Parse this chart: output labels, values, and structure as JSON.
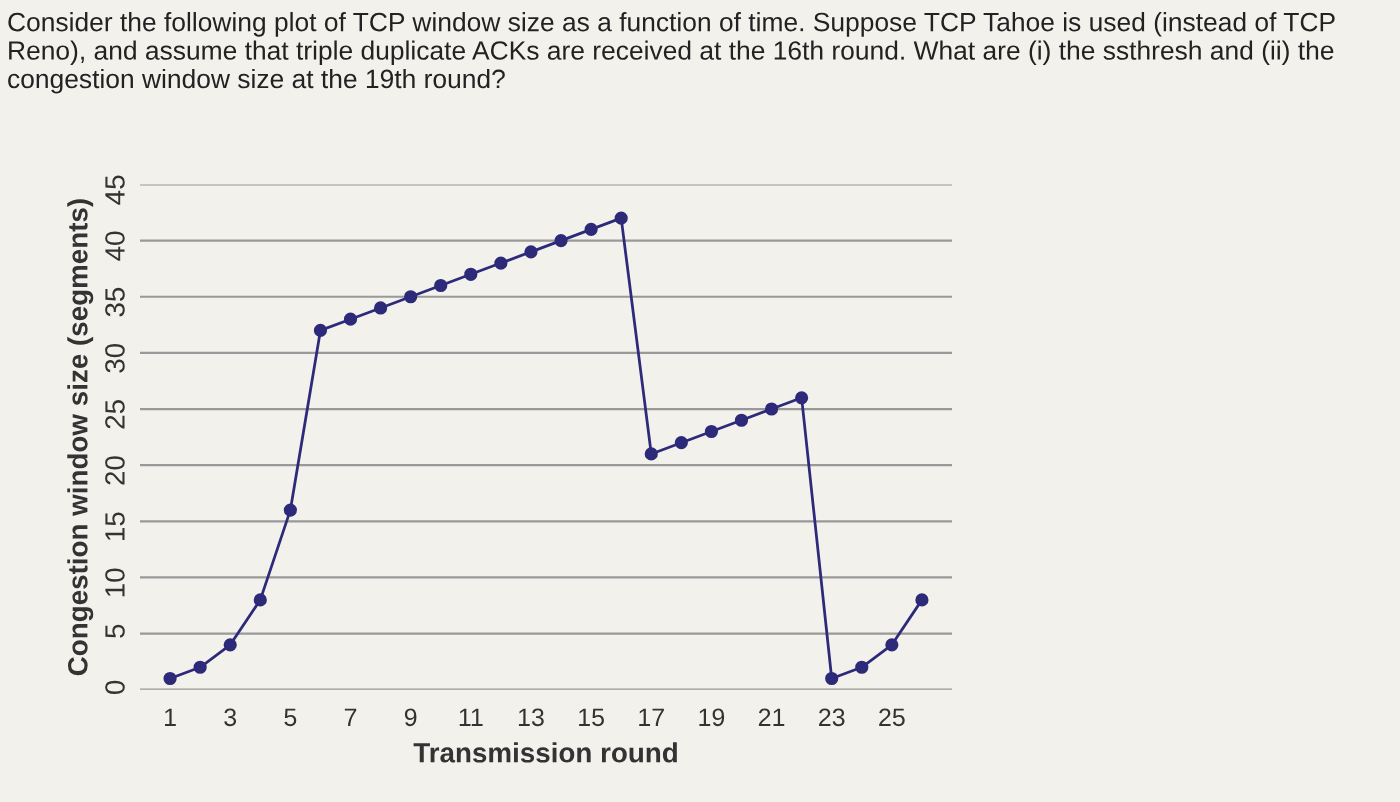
{
  "chart_data": {
    "type": "line",
    "title": "Consider the following plot of TCP window size as a function of time. Suppose TCP Tahoe is used (instead of TCP Reno), and assume that triple duplicate ACKs are received at the 16th round. What are (i) the ssthresh and (ii) the congestion window size at the 19th round?",
    "xlabel": "Transmission round",
    "ylabel": "Congestion window size (segments)",
    "x": [
      1,
      2,
      3,
      4,
      5,
      6,
      7,
      8,
      9,
      10,
      11,
      12,
      13,
      14,
      15,
      16,
      17,
      18,
      19,
      20,
      21,
      22,
      23,
      24,
      25,
      26
    ],
    "series": [
      {
        "color": "#2e2a7a",
        "values": [
          1,
          2,
          4,
          8,
          16,
          32,
          33,
          34,
          35,
          36,
          37,
          38,
          39,
          40,
          41,
          42,
          21,
          22,
          23,
          24,
          25,
          26,
          1,
          2,
          4,
          8
        ]
      }
    ],
    "xlim": [
      0,
      27
    ],
    "xticks": [
      1,
      3,
      5,
      7,
      9,
      11,
      13,
      15,
      17,
      19,
      21,
      23,
      25
    ],
    "ylim": [
      0,
      45
    ],
    "yticks": [
      0,
      5,
      10,
      15,
      20,
      25,
      30,
      35,
      40,
      45
    ],
    "grid": "y",
    "marker": "circle",
    "line_style": "solid"
  }
}
